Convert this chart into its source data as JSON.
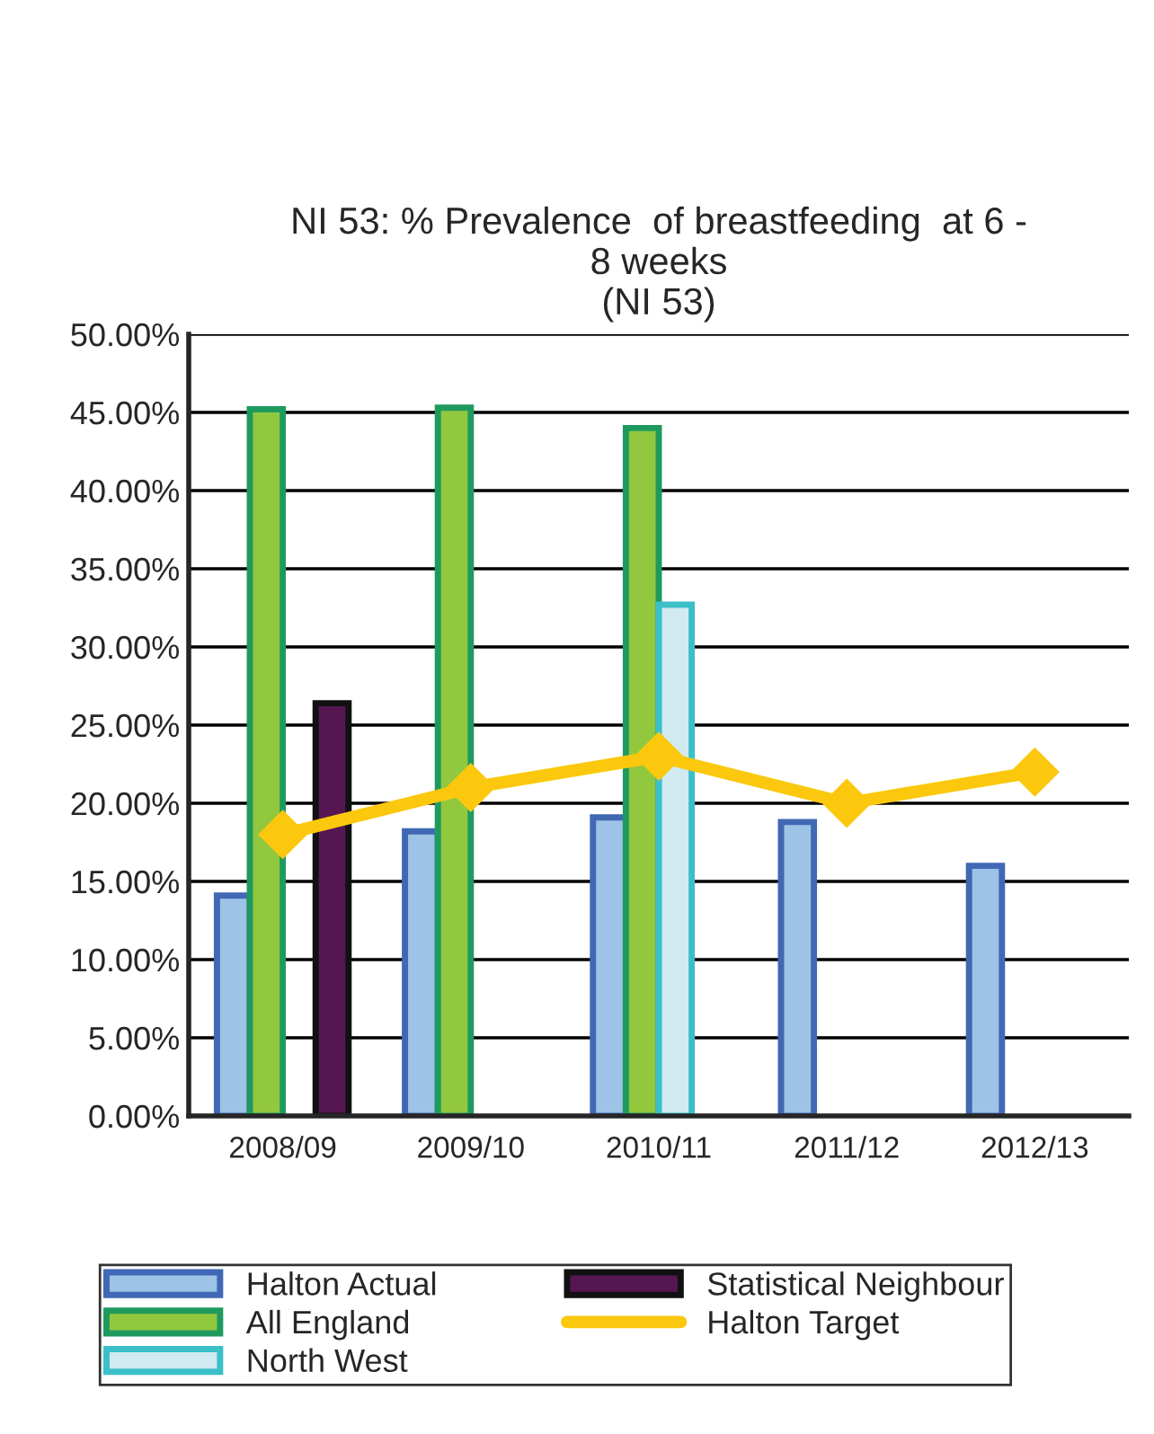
{
  "chart_data": {
    "type": "bar",
    "title": "NI 53: % Prevalence  of breastfeeding  at 6 -\n8 weeks\n(NI 53)",
    "categories": [
      "2008/09",
      "2009/10",
      "2010/11",
      "2011/12",
      "2012/13"
    ],
    "series": [
      {
        "name": "Halton Actual",
        "color": "#9dc3e6",
        "values": [
          14.1,
          18.2,
          19.1,
          18.8,
          16.0
        ]
      },
      {
        "name": "All England",
        "color": "#92c83e",
        "values": [
          45.2,
          45.3,
          44.0,
          null,
          null
        ]
      },
      {
        "name": "North West",
        "color": "#d0eaf0",
        "values": [
          null,
          null,
          32.7,
          null,
          null
        ]
      },
      {
        "name": "Statistical Neighbour",
        "color": "#561651",
        "values": [
          26.4,
          null,
          null,
          null,
          null
        ]
      },
      {
        "name": "Halton Target",
        "type": "line",
        "color": "#fbc80e",
        "marker": "diamond",
        "values": [
          18,
          21,
          23,
          20,
          22
        ]
      }
    ],
    "ylim": [
      0,
      50
    ],
    "yticks": [
      {
        "value": 0,
        "label": "0.00%"
      },
      {
        "value": 5,
        "label": "5.00%"
      },
      {
        "value": 10,
        "label": "10.00%"
      },
      {
        "value": 15,
        "label": "15.00%"
      },
      {
        "value": 20,
        "label": "20.00%"
      },
      {
        "value": 25,
        "label": "25.00%"
      },
      {
        "value": 30,
        "label": "30.00%"
      },
      {
        "value": 35,
        "label": "35.00%"
      },
      {
        "value": 40,
        "label": "40.00%"
      },
      {
        "value": 45,
        "label": "45.00%"
      },
      {
        "value": 50,
        "label": "50.00%"
      }
    ],
    "grid": "y",
    "legend": "bottom"
  }
}
